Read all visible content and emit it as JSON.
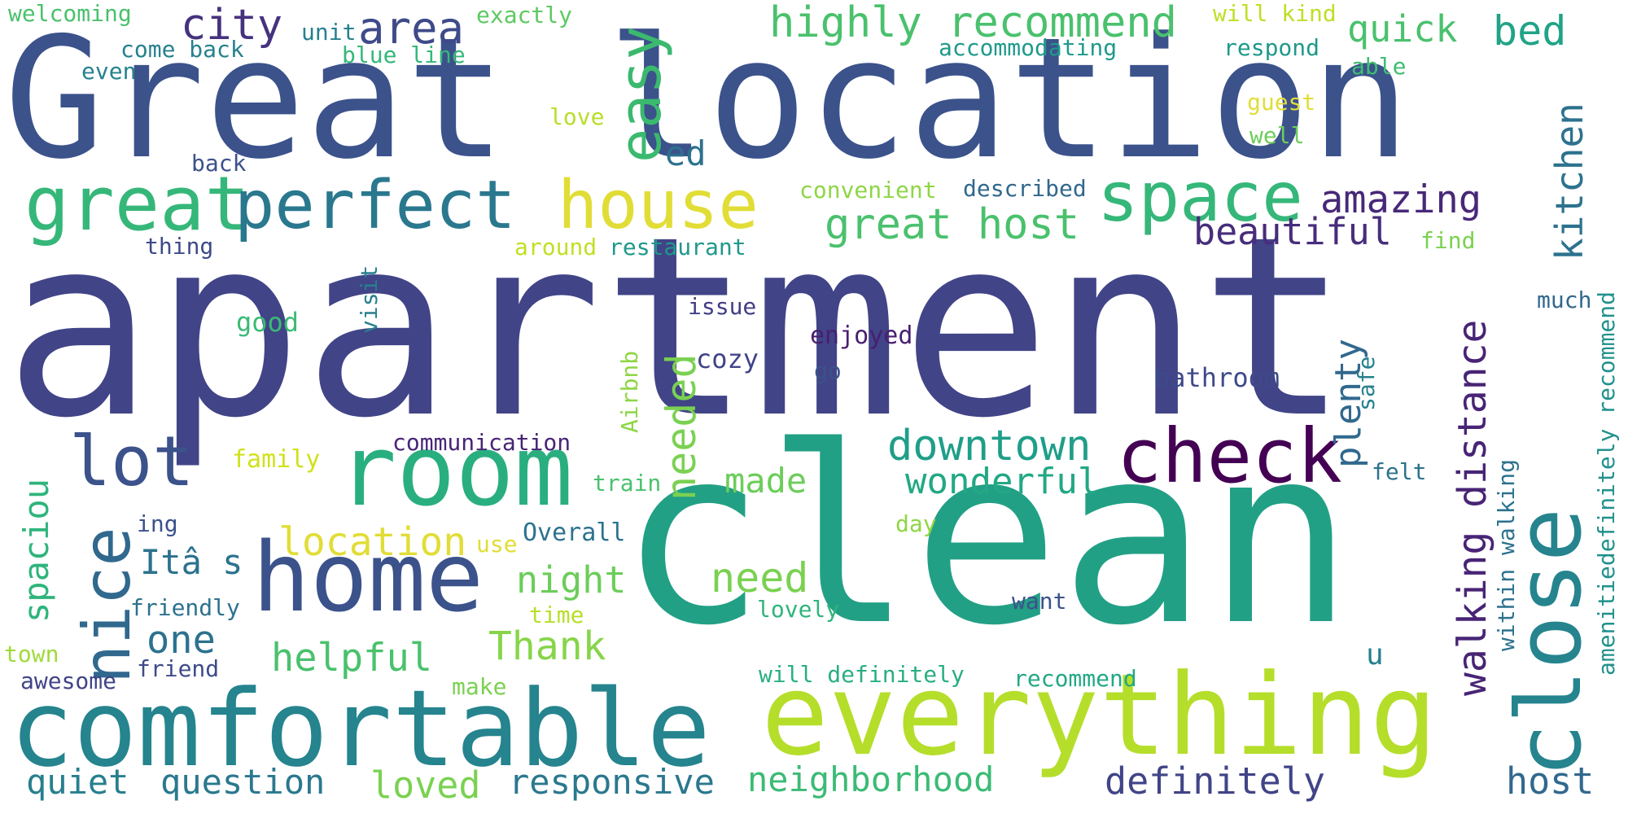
{
  "palette": {
    "dark_purple": "#440154",
    "purple": "#472d7b",
    "indigo": "#3b528b",
    "blue": "#2c728e",
    "teal": "#21918c",
    "green_teal": "#28ae80",
    "green": "#5ec962",
    "lime": "#addc30",
    "yellow": "#e1dd37"
  },
  "words": [
    {
      "text": "apartment",
      "color": "#414487"
    },
    {
      "text": "Great location",
      "color": "#3b528b"
    },
    {
      "text": "clean",
      "color": "#22a085"
    },
    {
      "text": "comfortable",
      "color": "#25848e"
    },
    {
      "text": "everything",
      "color": "#b5de2b"
    },
    {
      "text": "room",
      "color": "#29af7f"
    },
    {
      "text": "home",
      "color": "#3b528b"
    },
    {
      "text": "close",
      "color": "#25848e"
    },
    {
      "text": "check",
      "color": "#440154"
    },
    {
      "text": "great",
      "color": "#35b779"
    },
    {
      "text": "perfect",
      "color": "#2a788e"
    },
    {
      "text": "house",
      "color": "#e1dd37"
    },
    {
      "text": "space",
      "color": "#35b779"
    },
    {
      "text": "lot",
      "color": "#3b528b"
    },
    {
      "text": "nice",
      "color": "#31688e"
    },
    {
      "text": "easy",
      "color": "#3bb96f"
    },
    {
      "text": "city",
      "color": "#46327e"
    },
    {
      "text": "area",
      "color": "#3e4a89"
    },
    {
      "text": "highly recommend",
      "color": "#4ac16d"
    },
    {
      "text": "quick",
      "color": "#4ac16d"
    },
    {
      "text": "bed",
      "color": "#20a386"
    },
    {
      "text": "great host",
      "color": "#4ac16d"
    },
    {
      "text": "amazing",
      "color": "#482878"
    },
    {
      "text": "beautiful",
      "color": "#472d7b"
    },
    {
      "text": "kitchen",
      "color": "#2c728e"
    },
    {
      "text": "downtown",
      "color": "#1f9e89"
    },
    {
      "text": "wonderful",
      "color": "#22a884"
    },
    {
      "text": "needed",
      "color": "#7ad151"
    },
    {
      "text": "plenty",
      "color": "#31688e"
    },
    {
      "text": "walking distance",
      "color": "#482475"
    },
    {
      "text": "location",
      "color": "#e1dd37"
    },
    {
      "text": "made",
      "color": "#6ccd5a"
    },
    {
      "text": "need",
      "color": "#7ad151"
    },
    {
      "text": "night",
      "color": "#6ccd5a"
    },
    {
      "text": "Thank",
      "color": "#86d549"
    },
    {
      "text": "helpful",
      "color": "#4ac16d"
    },
    {
      "text": "one",
      "color": "#2c728e"
    },
    {
      "text": "Itâ s",
      "color": "#2c728e"
    },
    {
      "text": "spaciou",
      "color": "#2fb47c"
    },
    {
      "text": "quiet",
      "color": "#277f8e"
    },
    {
      "text": "question",
      "color": "#2a788e"
    },
    {
      "text": "loved",
      "color": "#7ad151"
    },
    {
      "text": "responsive",
      "color": "#2a788e"
    },
    {
      "text": "neighborhood",
      "color": "#3bbb75"
    },
    {
      "text": "definitely",
      "color": "#414487"
    },
    {
      "text": "host",
      "color": "#31688e"
    },
    {
      "text": "ed",
      "color": "#2d718e"
    },
    {
      "text": "welcoming",
      "color": "#4ac16d"
    },
    {
      "text": "exactly",
      "color": "#5ec962"
    },
    {
      "text": "unit",
      "color": "#26818e"
    },
    {
      "text": "come back",
      "color": "#26818e"
    },
    {
      "text": "blue line",
      "color": "#35b779"
    },
    {
      "text": "even",
      "color": "#26818e"
    },
    {
      "text": "will kind",
      "color": "#bddf26"
    },
    {
      "text": "respond",
      "color": "#1f998a"
    },
    {
      "text": "able",
      "color": "#40bd72"
    },
    {
      "text": "accommodating",
      "color": "#1f9a8a"
    },
    {
      "text": "love",
      "color": "#b8de29"
    },
    {
      "text": "guest",
      "color": "#e1dd37"
    },
    {
      "text": "well",
      "color": "#6ccd5a"
    },
    {
      "text": "back",
      "color": "#3b528b"
    },
    {
      "text": "convenient",
      "color": "#8ed645"
    },
    {
      "text": "described",
      "color": "#31688e"
    },
    {
      "text": "thing",
      "color": "#3e4a89"
    },
    {
      "text": "around",
      "color": "#c2df23"
    },
    {
      "text": "restaurant",
      "color": "#1f988b"
    },
    {
      "text": "find",
      "color": "#7ad151"
    },
    {
      "text": "visit",
      "color": "#277f8e"
    },
    {
      "text": "issue",
      "color": "#433e85"
    },
    {
      "text": "much",
      "color": "#31688e"
    },
    {
      "text": "good",
      "color": "#3bbb75"
    },
    {
      "text": "enjoyed",
      "color": "#481f70"
    },
    {
      "text": "cozy",
      "color": "#414487"
    },
    {
      "text": "go",
      "color": "#3b528b"
    },
    {
      "text": "Airbnb",
      "color": "#8ed645"
    },
    {
      "text": "bathroom",
      "color": "#3e4a89"
    },
    {
      "text": "safe",
      "color": "#26818e"
    },
    {
      "text": "definitely recommend",
      "color": "#21918c"
    },
    {
      "text": "amenitie",
      "color": "#3e4a89"
    },
    {
      "text": "within walking",
      "color": "#2c728e"
    },
    {
      "text": "communication",
      "color": "#482576"
    },
    {
      "text": "family",
      "color": "#d0e11c"
    },
    {
      "text": "train",
      "color": "#4ac16d"
    },
    {
      "text": "felt",
      "color": "#2c728e"
    },
    {
      "text": "day",
      "color": "#8ed645"
    },
    {
      "text": "ing",
      "color": "#3b528b"
    },
    {
      "text": "use",
      "color": "#e1dd37"
    },
    {
      "text": "Overall",
      "color": "#2c728e"
    },
    {
      "text": "friendly",
      "color": "#2c728e"
    },
    {
      "text": "time",
      "color": "#b8de29"
    },
    {
      "text": "lovely",
      "color": "#2fb47c"
    },
    {
      "text": "want",
      "color": "#3b528b"
    },
    {
      "text": "town",
      "color": "#a0da39"
    },
    {
      "text": "friend",
      "color": "#3e4a89"
    },
    {
      "text": "awesome",
      "color": "#414487"
    },
    {
      "text": "make",
      "color": "#7ad151"
    },
    {
      "text": "will definitely",
      "color": "#29af7f"
    },
    {
      "text": "recommend",
      "color": "#22a884"
    },
    {
      "text": "u",
      "color": "#26818e"
    }
  ]
}
